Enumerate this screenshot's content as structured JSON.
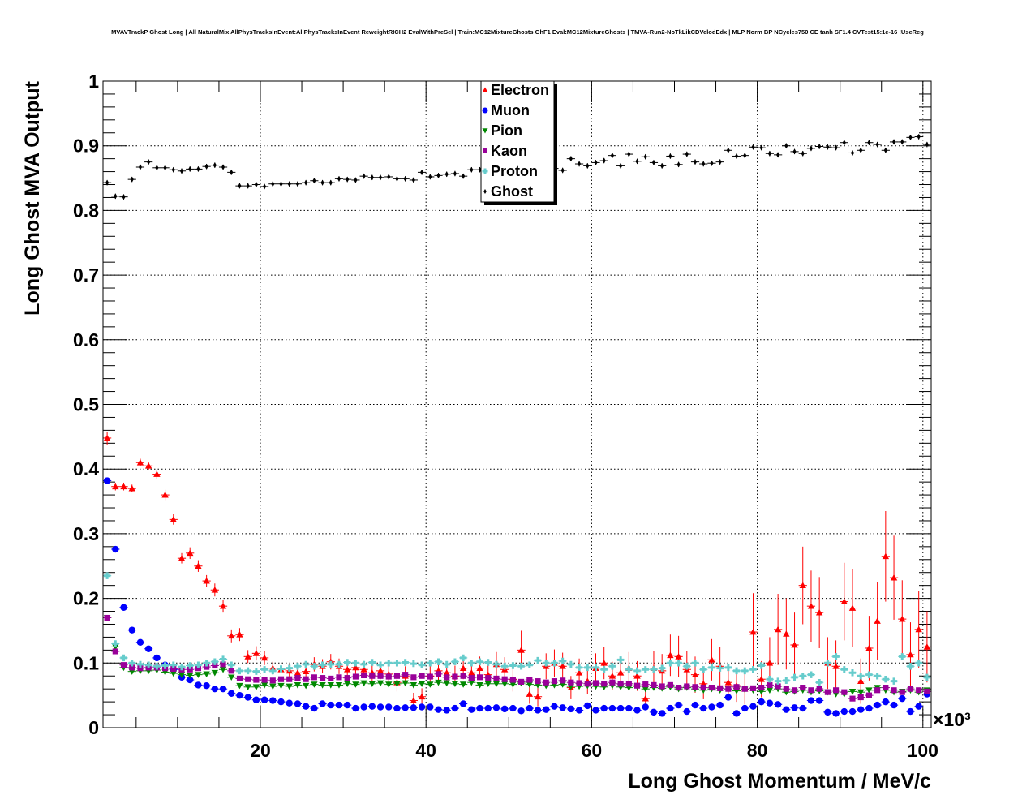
{
  "chart_data": {
    "type": "scatter",
    "title": "MVAVTrackP Ghost Long | All NaturalMix AllPhysTracksInEvent:AllPhysTracksInEvent ReweightRICH2 EvalWithPreSel | Train:MC12MixtureGhosts GhF1 Eval:MC12MixtureGhosts | TMVA-Run2-NoTkLikCDVelodEdx | MLP Norm BP NCycles750 CE tanh SF1.4 CVTest15:1e-16 !UseReg",
    "xlabel": "Long Ghost Momentum / MeV/c",
    "ylabel": "Long Ghost MVA Output",
    "x_multiplier": "×10³",
    "xlim": [
      1,
      101
    ],
    "ylim": [
      0,
      1
    ],
    "x_ticks": [
      "20",
      "40",
      "60",
      "80",
      "100"
    ],
    "y_ticks": [
      "0",
      "0.1",
      "0.2",
      "0.3",
      "0.4",
      "0.5",
      "0.6",
      "0.7",
      "0.8",
      "0.9",
      "1"
    ],
    "grid": true,
    "legend_position": "top-center",
    "x_start": 1.5,
    "x_step": 1,
    "series": [
      {
        "name": "Electron",
        "color": "#ff0000",
        "marker": "triangle-up",
        "values": [
          0.448,
          0.373,
          0.373,
          0.37,
          0.41,
          0.405,
          0.392,
          0.36,
          0.322,
          0.262,
          0.27,
          0.25,
          0.227,
          0.213,
          0.188,
          0.142,
          0.144,
          0.11,
          0.115,
          0.108,
          0.092,
          0.09,
          0.088,
          0.085,
          0.087,
          0.098,
          0.095,
          0.102,
          0.095,
          0.09,
          0.093,
          0.09,
          0.085,
          0.088,
          0.083,
          0.07,
          0.08,
          0.042,
          0.048,
          0.08,
          0.088,
          0.085,
          0.08,
          0.092,
          0.085,
          0.092,
          0.082,
          0.098,
          0.09,
          0.075,
          0.12,
          0.052,
          0.048,
          0.095,
          0.1,
          0.095,
          0.062,
          0.085,
          0.072,
          0.092,
          0.1,
          0.08,
          0.085,
          0.092,
          0.08,
          0.045,
          0.092,
          0.088,
          0.112,
          0.11,
          0.09,
          0.082,
          0.068,
          0.105,
          0.095,
          0.07,
          0.065,
          0.06,
          0.148,
          0.075,
          0.1,
          0.152,
          0.145,
          0.128,
          0.22,
          0.188,
          0.178,
          0.1,
          0.095,
          0.195,
          0.185,
          0.072,
          0.123,
          0.165,
          0.265,
          0.232,
          0.168,
          0.113,
          0.152,
          0.125
        ],
        "errors": [
          0.01,
          0.006,
          0.006,
          0.006,
          0.006,
          0.006,
          0.007,
          0.008,
          0.008,
          0.008,
          0.009,
          0.009,
          0.009,
          0.01,
          0.01,
          0.01,
          0.01,
          0.01,
          0.011,
          0.011,
          0.01,
          0.01,
          0.01,
          0.01,
          0.011,
          0.011,
          0.011,
          0.012,
          0.012,
          0.012,
          0.012,
          0.013,
          0.013,
          0.013,
          0.014,
          0.014,
          0.015,
          0.012,
          0.013,
          0.015,
          0.015,
          0.016,
          0.016,
          0.017,
          0.017,
          0.018,
          0.018,
          0.019,
          0.019,
          0.019,
          0.03,
          0.015,
          0.015,
          0.02,
          0.021,
          0.021,
          0.018,
          0.022,
          0.02,
          0.023,
          0.025,
          0.022,
          0.023,
          0.025,
          0.023,
          0.018,
          0.026,
          0.026,
          0.032,
          0.032,
          0.028,
          0.028,
          0.024,
          0.032,
          0.03,
          0.026,
          0.025,
          0.024,
          0.06,
          0.028,
          0.04,
          0.055,
          0.055,
          0.05,
          0.06,
          0.055,
          0.055,
          0.04,
          0.04,
          0.06,
          0.06,
          0.035,
          0.05,
          0.06,
          0.07,
          0.065,
          0.06,
          0.05,
          0.06,
          0.055
        ]
      },
      {
        "name": "Muon",
        "color": "#0000ff",
        "marker": "circle",
        "values": [
          0.382,
          0.276,
          0.186,
          0.151,
          0.132,
          0.122,
          0.108,
          0.097,
          0.09,
          0.078,
          0.074,
          0.066,
          0.065,
          0.06,
          0.06,
          0.053,
          0.05,
          0.047,
          0.043,
          0.043,
          0.042,
          0.04,
          0.038,
          0.037,
          0.033,
          0.03,
          0.037,
          0.035,
          0.035,
          0.035,
          0.03,
          0.032,
          0.033,
          0.032,
          0.032,
          0.03,
          0.031,
          0.031,
          0.032,
          0.032,
          0.028,
          0.027,
          0.03,
          0.037,
          0.028,
          0.03,
          0.03,
          0.031,
          0.029,
          0.03,
          0.026,
          0.03,
          0.027,
          0.028,
          0.033,
          0.031,
          0.029,
          0.027,
          0.034,
          0.027,
          0.03,
          0.03,
          0.03,
          0.03,
          0.027,
          0.032,
          0.024,
          0.022,
          0.03,
          0.035,
          0.025,
          0.035,
          0.03,
          0.032,
          0.035,
          0.047,
          0.022,
          0.03,
          0.033,
          0.04,
          0.038,
          0.036,
          0.028,
          0.031,
          0.03,
          0.042,
          0.042,
          0.024,
          0.022,
          0.025,
          0.025,
          0.028,
          0.03,
          0.035,
          0.04,
          0.035,
          0.045,
          0.025,
          0.033,
          0.052
        ]
      },
      {
        "name": "Pion",
        "color": "#008800",
        "marker": "triangle-down",
        "values": [
          0.17,
          0.125,
          0.093,
          0.087,
          0.088,
          0.088,
          0.089,
          0.086,
          0.084,
          0.082,
          0.081,
          0.082,
          0.083,
          0.085,
          0.09,
          0.078,
          0.065,
          0.063,
          0.063,
          0.066,
          0.064,
          0.065,
          0.064,
          0.066,
          0.065,
          0.067,
          0.066,
          0.066,
          0.066,
          0.068,
          0.067,
          0.069,
          0.068,
          0.069,
          0.067,
          0.068,
          0.069,
          0.066,
          0.068,
          0.067,
          0.07,
          0.069,
          0.068,
          0.067,
          0.07,
          0.066,
          0.068,
          0.068,
          0.068,
          0.067,
          0.069,
          0.067,
          0.066,
          0.065,
          0.066,
          0.067,
          0.064,
          0.064,
          0.065,
          0.064,
          0.063,
          0.065,
          0.063,
          0.062,
          0.064,
          0.06,
          0.062,
          0.061,
          0.063,
          0.06,
          0.062,
          0.06,
          0.058,
          0.06,
          0.058,
          0.06,
          0.057,
          0.059,
          0.058,
          0.056,
          0.058,
          0.06,
          0.055,
          0.056,
          0.058,
          0.055,
          0.057,
          0.055,
          0.052,
          0.052,
          0.056,
          0.055,
          0.058,
          0.062,
          0.058,
          0.055,
          0.056,
          0.058,
          0.055,
          0.058
        ]
      },
      {
        "name": "Kaon",
        "color": "#990099",
        "marker": "square",
        "values": [
          0.17,
          0.118,
          0.097,
          0.093,
          0.092,
          0.093,
          0.093,
          0.092,
          0.091,
          0.09,
          0.09,
          0.092,
          0.094,
          0.096,
          0.098,
          0.088,
          0.076,
          0.075,
          0.074,
          0.074,
          0.073,
          0.075,
          0.075,
          0.077,
          0.075,
          0.078,
          0.077,
          0.076,
          0.078,
          0.077,
          0.079,
          0.081,
          0.08,
          0.08,
          0.079,
          0.08,
          0.082,
          0.078,
          0.08,
          0.079,
          0.083,
          0.078,
          0.079,
          0.08,
          0.077,
          0.078,
          0.077,
          0.076,
          0.075,
          0.074,
          0.071,
          0.074,
          0.072,
          0.07,
          0.072,
          0.073,
          0.07,
          0.069,
          0.068,
          0.069,
          0.068,
          0.07,
          0.068,
          0.068,
          0.065,
          0.067,
          0.066,
          0.064,
          0.066,
          0.062,
          0.064,
          0.063,
          0.062,
          0.062,
          0.061,
          0.06,
          0.063,
          0.06,
          0.061,
          0.062,
          0.066,
          0.064,
          0.06,
          0.058,
          0.062,
          0.058,
          0.06,
          0.055,
          0.058,
          0.055,
          0.045,
          0.047,
          0.05,
          0.058,
          0.062,
          0.058,
          0.055,
          0.06,
          0.058,
          0.056
        ]
      },
      {
        "name": "Proton",
        "color": "#66cccc",
        "marker": "cross",
        "values": [
          0.235,
          0.13,
          0.108,
          0.1,
          0.098,
          0.097,
          0.095,
          0.096,
          0.097,
          0.094,
          0.096,
          0.097,
          0.1,
          0.102,
          0.106,
          0.097,
          0.088,
          0.088,
          0.087,
          0.09,
          0.088,
          0.091,
          0.092,
          0.095,
          0.098,
          0.095,
          0.097,
          0.098,
          0.098,
          0.101,
          0.1,
          0.098,
          0.101,
          0.097,
          0.1,
          0.1,
          0.101,
          0.099,
          0.097,
          0.1,
          0.102,
          0.098,
          0.102,
          0.108,
          0.1,
          0.102,
          0.101,
          0.098,
          0.095,
          0.096,
          0.095,
          0.097,
          0.104,
          0.1,
          0.1,
          0.103,
          0.098,
          0.093,
          0.093,
          0.093,
          0.09,
          0.095,
          0.105,
          0.09,
          0.088,
          0.09,
          0.09,
          0.092,
          0.1,
          0.1,
          0.095,
          0.1,
          0.09,
          0.093,
          0.092,
          0.093,
          0.088,
          0.088,
          0.09,
          0.096,
          0.075,
          0.072,
          0.073,
          0.078,
          0.08,
          0.082,
          0.07,
          0.1,
          0.11,
          0.09,
          0.085,
          0.08,
          0.082,
          0.08,
          0.075,
          0.072,
          0.11,
          0.095,
          0.1,
          0.078
        ]
      },
      {
        "name": "Ghost",
        "color": "#000000",
        "marker": "diamond",
        "values": [
          0.843,
          0.822,
          0.821,
          0.848,
          0.867,
          0.875,
          0.866,
          0.866,
          0.863,
          0.861,
          0.864,
          0.864,
          0.868,
          0.87,
          0.867,
          0.859,
          0.838,
          0.838,
          0.84,
          0.837,
          0.841,
          0.841,
          0.841,
          0.841,
          0.843,
          0.846,
          0.843,
          0.843,
          0.849,
          0.848,
          0.847,
          0.853,
          0.851,
          0.851,
          0.852,
          0.849,
          0.849,
          0.847,
          0.859,
          0.852,
          0.854,
          0.856,
          0.857,
          0.853,
          0.863,
          0.863,
          0.862,
          0.86,
          0.862,
          0.864,
          0.861,
          0.866,
          0.86,
          0.862,
          0.865,
          0.862,
          0.88,
          0.872,
          0.869,
          0.874,
          0.877,
          0.885,
          0.869,
          0.887,
          0.876,
          0.883,
          0.874,
          0.869,
          0.884,
          0.871,
          0.887,
          0.875,
          0.872,
          0.873,
          0.875,
          0.893,
          0.884,
          0.885,
          0.898,
          0.897,
          0.888,
          0.886,
          0.9,
          0.891,
          0.888,
          0.896,
          0.899,
          0.898,
          0.897,
          0.905,
          0.889,
          0.893,
          0.905,
          0.902,
          0.893,
          0.906,
          0.906,
          0.913,
          0.914,
          0.902
        ]
      }
    ]
  }
}
